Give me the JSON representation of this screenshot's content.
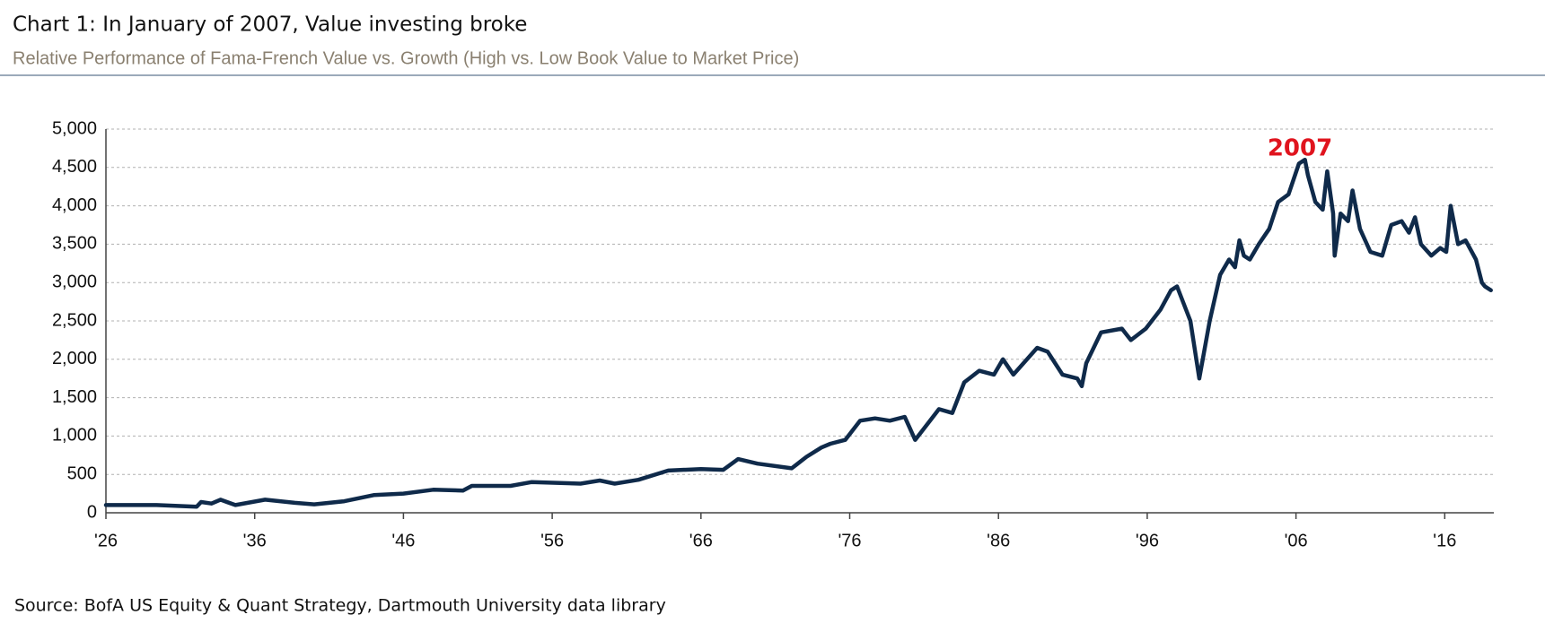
{
  "chart_data": {
    "type": "line",
    "title": "Chart 1: In January of 2007, Value investing broke",
    "subtitle": "Relative Performance of Fama-French Value vs. Growth (High vs. Low Book Value to Market Price)",
    "source": "Source: BofA US Equity & Quant Strategy, Dartmouth University data library",
    "annotation": "2007",
    "x": [
      1926,
      1929.4,
      1932.1,
      1932.4,
      1933.1,
      1933.7,
      1934.7,
      1936.7,
      1938.7,
      1940.0,
      1942.0,
      1944.0,
      1946.0,
      1948.0,
      1950.0,
      1950.6,
      1953.2,
      1954.6,
      1957.9,
      1959.2,
      1960.2,
      1961.8,
      1963.8,
      1966.0,
      1967.5,
      1968.5,
      1969.8,
      1972.1,
      1973.1,
      1974.1,
      1974.7,
      1975.7,
      1976.7,
      1977.7,
      1978.7,
      1979.7,
      1980.4,
      1981.4,
      1982.0,
      1982.9,
      1983.7,
      1984.7,
      1985.7,
      1986.3,
      1987.0,
      1988.6,
      1989.3,
      1990.3,
      1991.3,
      1991.6,
      1991.9,
      1992.9,
      1994.3,
      1994.9,
      1995.9,
      1996.9,
      1997.6,
      1998.0,
      1998.9,
      1999.5,
      2000.2,
      2000.9,
      2001.5,
      2001.9,
      2002.2,
      2002.5,
      2002.9,
      2003.5,
      2004.2,
      2004.8,
      2005.5,
      2006.2,
      2006.6,
      2006.8,
      2007.3,
      2007.8,
      2008.1,
      2008.5,
      2008.6,
      2009.0,
      2009.5,
      2009.8,
      2010.3,
      2011.0,
      2011.8,
      2012.4,
      2013.1,
      2013.6,
      2014.0,
      2014.4,
      2015.1,
      2015.7,
      2016.1,
      2016.4,
      2016.9,
      2017.4,
      2018.1,
      2018.5,
      2018.7,
      2019.1
    ],
    "series": [
      {
        "name": "Value vs. Growth",
        "color": "#0f2a4a",
        "values": [
          100,
          100,
          80,
          140,
          120,
          170,
          100,
          170,
          130,
          110,
          150,
          230,
          250,
          300,
          290,
          350,
          350,
          400,
          380,
          420,
          380,
          430,
          550,
          570,
          560,
          700,
          640,
          580,
          730,
          850,
          900,
          950,
          1200,
          1230,
          1200,
          1250,
          950,
          1200,
          1350,
          1300,
          1700,
          1850,
          1800,
          2000,
          1800,
          2150,
          2100,
          1800,
          1750,
          1650,
          1950,
          2350,
          2400,
          2250,
          2400,
          2650,
          2900,
          2950,
          2500,
          1750,
          2500,
          3100,
          3300,
          3200,
          3550,
          3350,
          3300,
          3500,
          3700,
          4050,
          4150,
          4550,
          4600,
          4400,
          4050,
          3950,
          4450,
          3900,
          3350,
          3900,
          3800,
          4200,
          3700,
          3400,
          3350,
          3750,
          3800,
          3650,
          3850,
          3500,
          3350,
          3450,
          3400,
          4000,
          3500,
          3550,
          3300,
          3000,
          2950,
          2900
        ]
      }
    ],
    "xlim": [
      1926,
      2019.3
    ],
    "xticks": [
      {
        "value": 1926,
        "label": "'26"
      },
      {
        "value": 1936,
        "label": "'36"
      },
      {
        "value": 1946,
        "label": "'46"
      },
      {
        "value": 1956,
        "label": "'56"
      },
      {
        "value": 1966,
        "label": "'66"
      },
      {
        "value": 1976,
        "label": "'76"
      },
      {
        "value": 1986,
        "label": "'86"
      },
      {
        "value": 1996,
        "label": "'96"
      },
      {
        "value": 2006,
        "label": "'06"
      },
      {
        "value": 2016,
        "label": "'16"
      }
    ],
    "ylim": [
      0,
      5000
    ],
    "yticks": [
      0,
      500,
      {
        "value": 1000,
        "label": "1,000"
      },
      {
        "value": 1500,
        "label": "1,500"
      },
      {
        "value": 2000,
        "label": "2,000"
      },
      {
        "value": 2500,
        "label": "2,500"
      },
      {
        "value": 3000,
        "label": "3,000"
      },
      {
        "value": 3500,
        "label": "3,500"
      },
      {
        "value": 4000,
        "label": "4,000"
      },
      {
        "value": 4500,
        "label": "4,500"
      },
      {
        "value": 5000,
        "label": "5,000"
      }
    ],
    "grid": true
  }
}
